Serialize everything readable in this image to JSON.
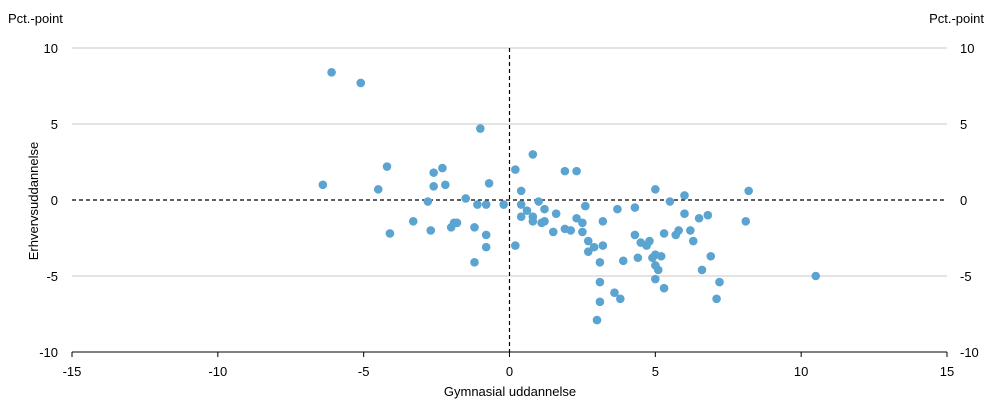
{
  "chart_data": {
    "type": "scatter",
    "unit_left": "Pct.-point",
    "unit_right": "Pct.-point",
    "xlabel": "Gymnasial uddannelse",
    "ylabel": "Erhvervsuddannelse",
    "xlim": [
      -15,
      15
    ],
    "ylim": [
      -10,
      10
    ],
    "x_ticks": [
      -15,
      -10,
      -5,
      0,
      5,
      10,
      15
    ],
    "y_ticks": [
      -10,
      -5,
      0,
      5,
      10
    ],
    "gridlines": "horizontal",
    "reference_lines": "dashed at x=0 and y=0",
    "marker_color": "#5ba3d0",
    "points": [
      [
        -6.1,
        8.4
      ],
      [
        -5.1,
        7.7
      ],
      [
        -1.0,
        4.7
      ],
      [
        -6.4,
        1.0
      ],
      [
        -4.5,
        0.7
      ],
      [
        -4.2,
        2.2
      ],
      [
        -4.1,
        -2.2
      ],
      [
        -3.3,
        -1.4
      ],
      [
        -2.8,
        -0.1
      ],
      [
        -2.7,
        -2.0
      ],
      [
        -2.6,
        1.8
      ],
      [
        -2.6,
        0.9
      ],
      [
        -2.3,
        2.1
      ],
      [
        -2.2,
        1.0
      ],
      [
        -2.0,
        -1.8
      ],
      [
        -1.9,
        -1.5
      ],
      [
        -1.8,
        -1.5
      ],
      [
        -1.5,
        0.1
      ],
      [
        -1.2,
        -1.8
      ],
      [
        -1.2,
        -4.1
      ],
      [
        -1.1,
        -0.3
      ],
      [
        -0.8,
        -0.3
      ],
      [
        -0.8,
        -2.3
      ],
      [
        -0.8,
        -3.1
      ],
      [
        -0.7,
        1.1
      ],
      [
        -0.2,
        -0.3
      ],
      [
        0.2,
        2.0
      ],
      [
        0.2,
        -3.0
      ],
      [
        0.4,
        0.6
      ],
      [
        0.4,
        -0.3
      ],
      [
        0.4,
        -1.1
      ],
      [
        0.6,
        -0.7
      ],
      [
        0.8,
        3.0
      ],
      [
        0.8,
        -1.1
      ],
      [
        0.8,
        -1.4
      ],
      [
        1.0,
        -0.1
      ],
      [
        1.1,
        -1.5
      ],
      [
        1.2,
        -0.6
      ],
      [
        1.2,
        -1.4
      ],
      [
        1.5,
        -2.1
      ],
      [
        1.6,
        -0.9
      ],
      [
        1.9,
        1.9
      ],
      [
        1.9,
        -1.9
      ],
      [
        2.1,
        -2.0
      ],
      [
        2.3,
        1.9
      ],
      [
        2.3,
        -1.2
      ],
      [
        2.5,
        -1.5
      ],
      [
        2.5,
        -2.1
      ],
      [
        2.6,
        -0.4
      ],
      [
        2.7,
        -2.7
      ],
      [
        2.7,
        -3.4
      ],
      [
        2.9,
        -3.1
      ],
      [
        3.0,
        -7.9
      ],
      [
        3.1,
        -4.1
      ],
      [
        3.1,
        -5.4
      ],
      [
        3.1,
        -6.7
      ],
      [
        3.2,
        -1.4
      ],
      [
        3.2,
        -3.0
      ],
      [
        3.6,
        -6.1
      ],
      [
        3.7,
        -0.6
      ],
      [
        3.8,
        -6.5
      ],
      [
        3.9,
        -4.0
      ],
      [
        4.3,
        -0.5
      ],
      [
        4.3,
        -2.3
      ],
      [
        4.4,
        -3.8
      ],
      [
        4.5,
        -2.8
      ],
      [
        4.7,
        -3.0
      ],
      [
        4.8,
        -2.7
      ],
      [
        4.9,
        -3.8
      ],
      [
        5.0,
        0.7
      ],
      [
        5.0,
        -3.6
      ],
      [
        5.0,
        -4.3
      ],
      [
        5.0,
        -5.2
      ],
      [
        5.1,
        -4.6
      ],
      [
        5.2,
        -3.7
      ],
      [
        5.3,
        -5.8
      ],
      [
        5.3,
        -2.2
      ],
      [
        5.5,
        -0.1
      ],
      [
        5.7,
        -2.3
      ],
      [
        5.8,
        -2.0
      ],
      [
        6.0,
        0.3
      ],
      [
        6.0,
        -0.9
      ],
      [
        6.2,
        -2.0
      ],
      [
        6.3,
        -2.7
      ],
      [
        6.5,
        -1.2
      ],
      [
        6.6,
        -4.6
      ],
      [
        6.8,
        -1.0
      ],
      [
        6.9,
        -3.7
      ],
      [
        7.1,
        -6.5
      ],
      [
        7.2,
        -5.4
      ],
      [
        8.1,
        -1.4
      ],
      [
        8.2,
        0.6
      ],
      [
        10.5,
        -5.0
      ]
    ]
  }
}
